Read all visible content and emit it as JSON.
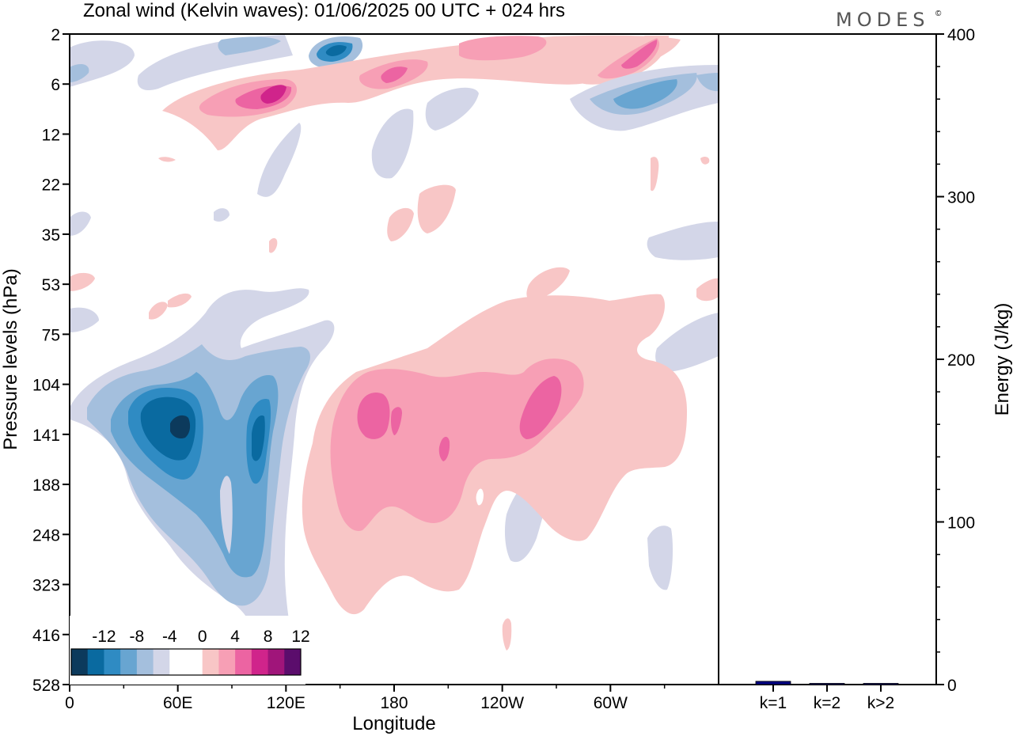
{
  "chart_data": [
    {
      "type": "heatmap",
      "title": "Zonal wind (Kelvin waves):  01/06/2025  00 UTC  + 024 hrs",
      "xlabel": "Longitude",
      "ylabel": "Pressure levels (hPa)",
      "x_ticks": [
        "0",
        "60E",
        "120E",
        "180",
        "120W",
        "60W"
      ],
      "y_ticks": [
        "2",
        "6",
        "12",
        "22",
        "35",
        "53",
        "75",
        "104",
        "141",
        "188",
        "248",
        "323",
        "416",
        "528"
      ],
      "colorbar": {
        "labels": [
          "-12",
          "-8",
          "-4",
          "0",
          "4",
          "8",
          "12"
        ],
        "colors": [
          "#0c3a5c",
          "#0a6aa0",
          "#2f8bc3",
          "#68a5d1",
          "#a4bfdd",
          "#d3d6e8",
          "#ffffff",
          "#ffffff",
          "#f8c6c6",
          "#f79fb5",
          "#ec64a2",
          "#d0248b",
          "#a0157a",
          "#5b0d6c"
        ]
      },
      "features": [
        {
          "name": "upper-level negative anomaly",
          "sign": "negative",
          "lon": 150,
          "pressure": 3,
          "value": -10
        },
        {
          "name": "upper-level positive band",
          "sign": "positive",
          "lon": 195,
          "pressure": 5,
          "value": 8
        },
        {
          "name": "upper-level positive core",
          "sign": "positive",
          "lon": 105,
          "pressure": 7,
          "value": 10
        },
        {
          "name": "upper-level positive core east",
          "sign": "positive",
          "lon": 325,
          "pressure": 3,
          "value": 8
        },
        {
          "name": "upper-level negative east",
          "sign": "negative",
          "lon": 318,
          "pressure": 7,
          "value": -6
        },
        {
          "name": "negative anomaly core",
          "sign": "negative",
          "lon": 60,
          "pressure": 141,
          "value": -13
        },
        {
          "name": "negative anomaly secondary",
          "sign": "negative",
          "lon": 102,
          "pressure": 160,
          "value": -9
        },
        {
          "name": "positive anomaly core",
          "sign": "positive",
          "lon": 170,
          "pressure": 135,
          "value": 9
        },
        {
          "name": "positive anomaly core east",
          "sign": "positive",
          "lon": 262,
          "pressure": 125,
          "value": 9
        },
        {
          "name": "positive anomaly small core",
          "sign": "positive",
          "lon": 208,
          "pressure": 165,
          "value": 8
        }
      ]
    },
    {
      "type": "bar",
      "ylabel": "Energy (J/kg)",
      "categories": [
        "k=1",
        "k=2",
        "k>2"
      ],
      "values": [
        2,
        0.5,
        0.4
      ],
      "ylim": [
        0,
        400
      ],
      "y_ticks": [
        "0",
        "100",
        "200",
        "300",
        "400"
      ],
      "bar_color": "#000080"
    }
  ],
  "logo": "MODES",
  "logo_mark": "©"
}
